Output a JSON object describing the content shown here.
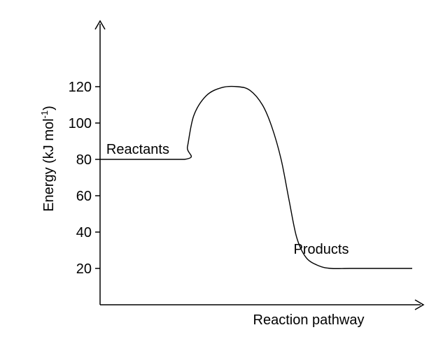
{
  "chart_data": {
    "type": "line",
    "title": "",
    "xlabel": "Reaction pathway",
    "ylabel": {
      "main": "Energy (kJ mol",
      "superscript": "-1",
      "close": ")"
    },
    "yticks": [
      20,
      40,
      60,
      80,
      100,
      120
    ],
    "ylim": [
      0,
      140
    ],
    "xlim": [
      0,
      10
    ],
    "grid": false,
    "series": [
      {
        "x": [
          0,
          2.7,
          2.8,
          3.0,
          3.4,
          3.9,
          4.4,
          4.8,
          5.2,
          5.5,
          5.8,
          6.05,
          6.3,
          6.6,
          7.0,
          7.4,
          8.0,
          9.0,
          10.0
        ],
        "y": [
          80,
          80,
          87,
          104,
          115,
          119.5,
          120,
          118,
          110,
          98,
          80,
          58,
          37,
          26,
          21.5,
          20,
          20,
          20,
          20
        ]
      }
    ],
    "annotations": [
      {
        "text": "Reactants",
        "x": 0.2,
        "y": 83
      },
      {
        "text": "Products",
        "x": 6.2,
        "y": 28
      }
    ],
    "colors": {
      "line": "#000000",
      "axis": "#000000",
      "text": "#000000"
    }
  }
}
